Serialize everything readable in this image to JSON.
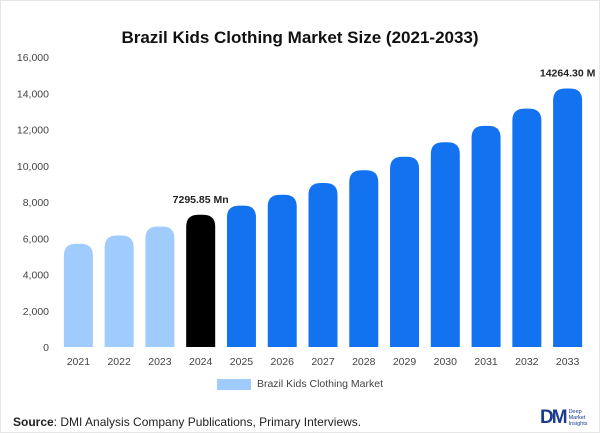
{
  "title": "Brazil Kids Clothing Market Size (2021-2033)",
  "legend_label": "Brazil Kids Clothing Market",
  "source_label": "Source",
  "source_text": ": DMI Analysis Company Publications, Primary Interviews.",
  "logo": {
    "mark": "DM",
    "line1": "Deep",
    "line2": "Market",
    "line3": "Insights"
  },
  "colors": {
    "historic": "#a0cbfd",
    "base": "#000000",
    "forecast": "#1272f0"
  },
  "chart_data": {
    "type": "bar",
    "title": "Brazil Kids Clothing Market Size (2021-2033)",
    "categories": [
      "2021",
      "2022",
      "2023",
      "2024",
      "2025",
      "2026",
      "2027",
      "2028",
      "2029",
      "2030",
      "2031",
      "2032",
      "2033"
    ],
    "values": [
      5700,
      6150,
      6650,
      7295.85,
      7800,
      8400,
      9050,
      9750,
      10500,
      11300,
      12200,
      13150,
      14264.3
    ],
    "series": [
      {
        "name": "Brazil Kids Clothing Market"
      }
    ],
    "data_labels": {
      "2024": "7295.85 Mn",
      "2033": "14264.30 M"
    },
    "ylim": [
      0,
      16000
    ],
    "yticks": [
      "0",
      "2,000",
      "4,000",
      "6,000",
      "8,000",
      "10,000",
      "12,000",
      "14,000",
      "16,000"
    ],
    "xlabel": "",
    "ylabel": "",
    "grid": false,
    "legend": "bottom"
  }
}
